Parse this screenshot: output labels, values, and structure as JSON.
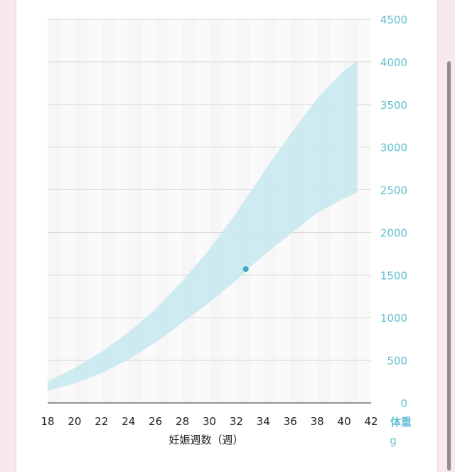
{
  "chart_data": {
    "type": "area",
    "xlabel": "妊娠週数（週）",
    "ylabel": "体重",
    "yunit": "g",
    "x_ticks": [
      18,
      20,
      22,
      24,
      26,
      28,
      30,
      32,
      34,
      36,
      38,
      40,
      42
    ],
    "y_ticks": [
      0,
      500,
      1000,
      1500,
      2000,
      2500,
      3000,
      3500,
      4000,
      4500
    ],
    "xlim": [
      18,
      42
    ],
    "ylim": [
      0,
      4500
    ],
    "grid": true,
    "band_color": "#c6e7ee",
    "axis_color": "#5fc0d0",
    "band": {
      "x": [
        18,
        20,
        22,
        24,
        26,
        28,
        30,
        32,
        34,
        36,
        38,
        40,
        41
      ],
      "upper": [
        250,
        410,
        600,
        830,
        1100,
        1430,
        1800,
        2230,
        2700,
        3150,
        3570,
        3900,
        4010
      ],
      "lower": [
        140,
        230,
        350,
        510,
        710,
        940,
        1180,
        1440,
        1730,
        1980,
        2230,
        2400,
        2470
      ]
    },
    "point": {
      "x": 32.7,
      "y": 1570,
      "color": "#42a8c2"
    }
  }
}
